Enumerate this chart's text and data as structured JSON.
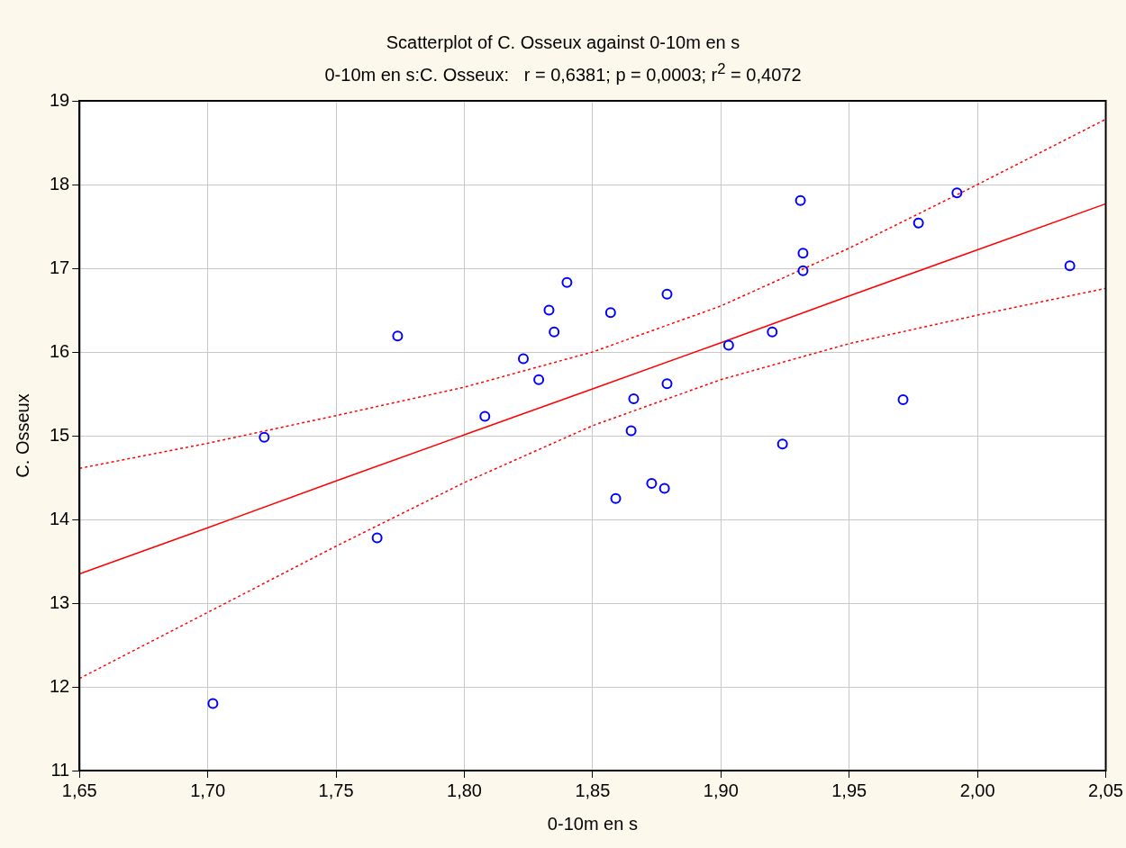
{
  "chart_data": {
    "type": "scatter",
    "title": "Scatterplot of C. Osseux against 0-10m en s",
    "subtitle": "0-10m en s:C. Osseux:   r = 0,6381; p = 0,0003; r$^{2}$ = 0,4072",
    "xlabel": "0-10m en s",
    "ylabel": "C. Osseux",
    "xlim": [
      1.65,
      2.05
    ],
    "xticks": [
      {
        "value": 1.65,
        "label": "1,65"
      },
      {
        "value": 1.7,
        "label": "1,70"
      },
      {
        "value": 1.75,
        "label": "1,75"
      },
      {
        "value": 1.8,
        "label": "1,80"
      },
      {
        "value": 1.85,
        "label": "1,85"
      },
      {
        "value": 1.9,
        "label": "1,90"
      },
      {
        "value": 1.95,
        "label": "1,95"
      },
      {
        "value": 2,
        "label": "2,00"
      },
      {
        "value": 2.05,
        "label": "2,05"
      }
    ],
    "ylim": [
      11,
      19
    ],
    "yticks": [
      11,
      12,
      13,
      14,
      15,
      16,
      17,
      18,
      19
    ],
    "grid": true,
    "legend": false,
    "series": [
      {
        "type": "scatter",
        "color": "#0000ff",
        "marker": "circle",
        "x": [
          1.702,
          1.722,
          1.766,
          1.774,
          1.808,
          1.823,
          1.829,
          1.833,
          1.835,
          1.84,
          1.857,
          1.859,
          1.865,
          1.866,
          1.873,
          1.878,
          1.879,
          1.879,
          1.903,
          1.92,
          1.924,
          1.931,
          1.932,
          1.932,
          1.971,
          1.977,
          1.992,
          2.036
        ],
        "values": [
          11.8,
          14.98,
          13.78,
          16.19,
          15.23,
          15.92,
          15.67,
          16.5,
          16.24,
          16.83,
          16.47,
          14.25,
          15.06,
          15.44,
          14.43,
          14.37,
          16.69,
          15.62,
          16.08,
          16.24,
          14.9,
          17.81,
          17.18,
          16.97,
          15.43,
          17.54,
          17.9,
          17.03
        ]
      },
      {
        "type": "line",
        "color": "#ff0000",
        "marker": "none",
        "line_style": "solid",
        "x": [
          1.65,
          1.7,
          1.75,
          1.8,
          1.85,
          1.9,
          1.95,
          2,
          2.05
        ],
        "values": [
          13.35,
          13.9,
          14.46,
          15.01,
          15.56,
          16.11,
          16.67,
          17.22,
          17.77
        ]
      },
      {
        "type": "line",
        "color": "#ff0000",
        "marker": "none",
        "line_style": "dotted",
        "x": [
          1.65,
          1.7,
          1.75,
          1.8,
          1.85,
          1.9,
          1.95,
          2,
          2.05
        ],
        "values": [
          14.61,
          14.91,
          15.24,
          15.58,
          16,
          16.55,
          17.24,
          18,
          18.78
        ]
      },
      {
        "type": "line",
        "color": "#ff0000",
        "marker": "none",
        "line_style": "dotted",
        "x": [
          1.65,
          1.7,
          1.75,
          1.8,
          1.85,
          1.9,
          1.95,
          2,
          2.05
        ],
        "values": [
          12.1,
          12.89,
          13.68,
          14.44,
          15.12,
          15.67,
          16.1,
          16.44,
          16.76
        ]
      }
    ]
  }
}
